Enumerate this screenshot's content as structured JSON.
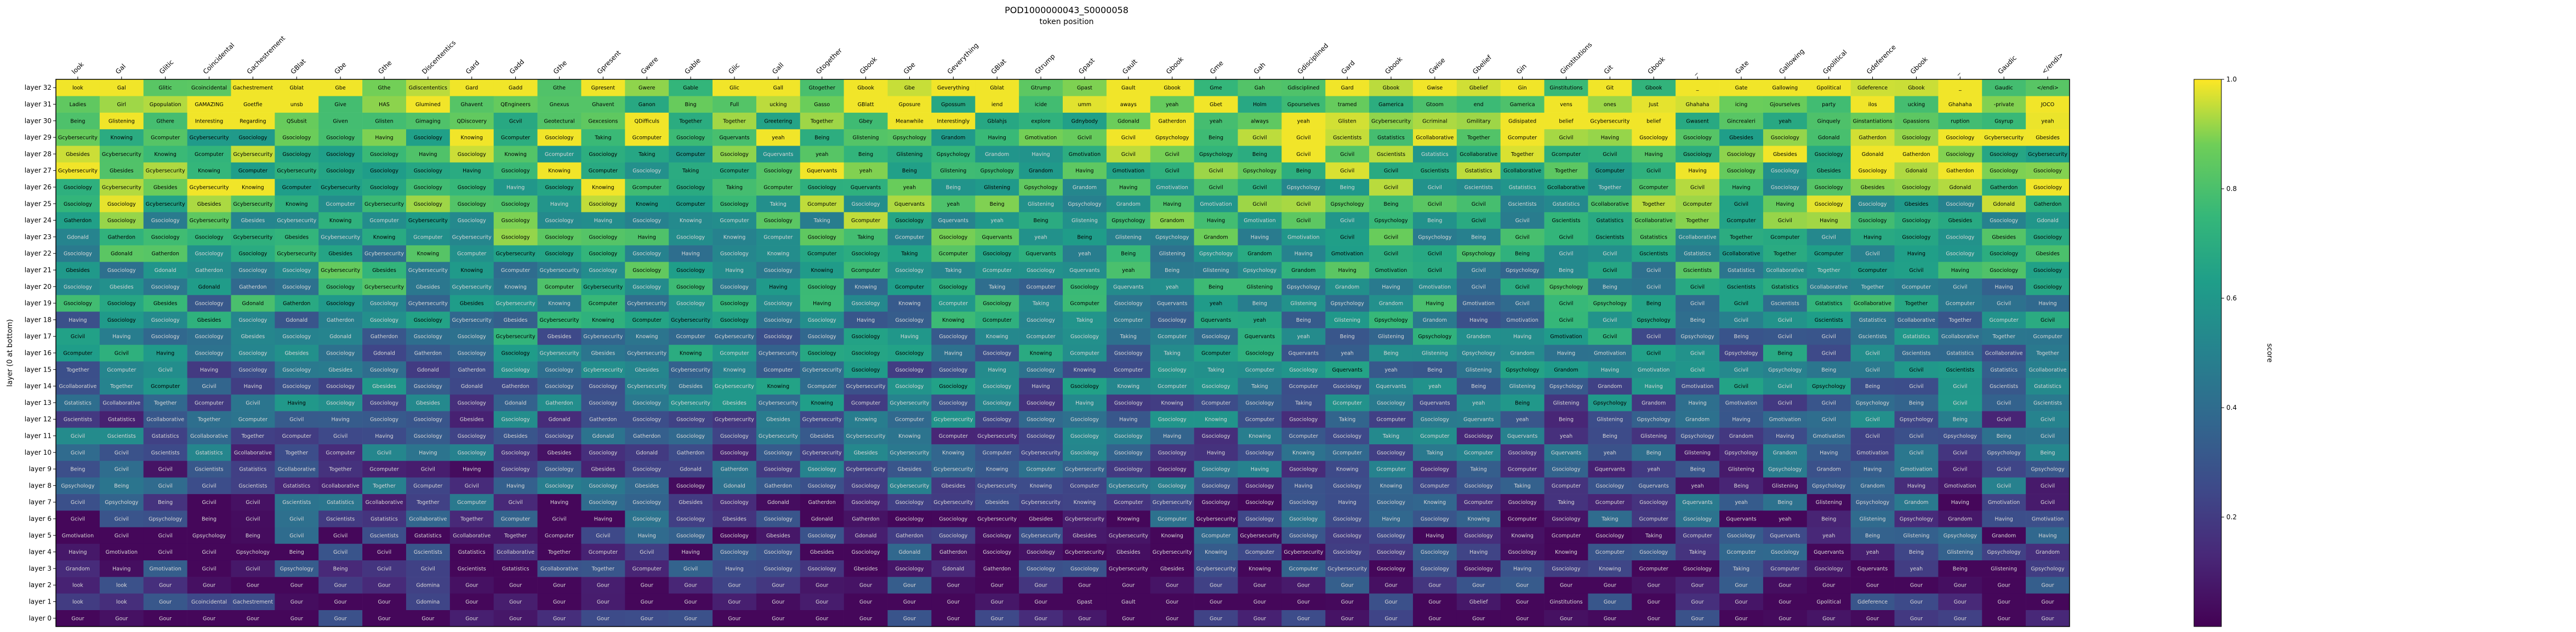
{
  "chart_data": {
    "type": "heatmap",
    "title": "POD1000000043_S0000058",
    "xlabel": "token position",
    "ylabel": "layer (0 at bottom)",
    "x_tokens": [
      "look",
      "Gal",
      "Glitic",
      "Coincidental",
      "Gachestrement",
      "GBlat",
      "Gbe",
      "Gthe",
      "Discententics",
      "Gard",
      "Gadd",
      "Gthe",
      "Gpresent",
      "Gwere",
      "Gable",
      "Glic",
      "Gall",
      "Gtogether",
      "Gbook",
      "Gbe",
      "Geverything",
      "GBlat",
      "Gtrump",
      "Gpast",
      "Gault",
      "Gbook",
      "Gme",
      "Gah",
      "Gdisciplined",
      "Gard",
      "Gbook",
      "Gwise",
      "Gbelief",
      "Gin",
      "Ginstitutions",
      "Git",
      "Gbook",
      "_",
      "Gate",
      "Gallowing",
      "Gpolitical",
      "Gdeference",
      "Gbook",
      "_",
      "Gaudic",
      "</endi>"
    ],
    "layers": [
      "layer 0",
      "layer 1",
      "layer 2",
      "layer 3",
      "layer 4",
      "layer 5",
      "layer 6",
      "layer 7",
      "layer 8",
      "layer 9",
      "layer 10",
      "layer 11",
      "layer 12",
      "layer 13",
      "layer 14",
      "layer 15",
      "layer 16",
      "layer 17",
      "layer 18",
      "layer 19",
      "layer 20",
      "layer 21",
      "layer 22",
      "layer 23",
      "layer 24",
      "layer 25",
      "layer 26",
      "layer 27",
      "layer 28",
      "layer 29",
      "layer 30",
      "layer 31",
      "layer 32"
    ],
    "predicted_tokens_top_layers": {
      "layer 32": [
        "look",
        "Gal",
        "Glitic",
        "Gcoincidental",
        "Gachestrement",
        "Gblat",
        "Gbe",
        "Gthe",
        "Gdiscententics",
        "Gard",
        "Gadd",
        "Gthe",
        "Gpresent",
        "Gwere",
        "Gable",
        "Glic",
        "Gall",
        "Gtogether",
        "Gbook",
        "Gbe",
        "Geverything",
        "Gblat",
        "Gtrump",
        "Gpast",
        "Gault",
        "Gbook",
        "Gme",
        "Gah",
        "Gdisciplined",
        "Gard",
        "Gbook",
        "Gwise",
        "Gbelief",
        "Gin",
        "Ginstitutions",
        "Git",
        "Gbook",
        "_",
        "Gate",
        "Gallowing",
        "Gpolitical",
        "Gdeference",
        "Gbook",
        "_",
        "Gaudic",
        "</endi>"
      ],
      "layer 31": [
        "Ladies",
        "Girl",
        "Gpopulation",
        "GAMAZING",
        "Goetfie",
        "unsb",
        "Give",
        "HAS",
        "Glumined",
        "Ghavent",
        "QEngineers",
        "Gnexus",
        "Ghavent",
        "Ganon",
        "Bing",
        "Full",
        "ucking",
        "Gasso",
        "GBlatt",
        "Gposure",
        "Gpossum",
        "iend",
        "icide",
        "umm",
        "aways",
        "yeah",
        "Gbet",
        "Holm",
        "Gpourselves",
        "tramed",
        "Gamerica",
        "Gtoom",
        "end",
        "Gamerica",
        "vens",
        "ones",
        "Just",
        "Ghahaha",
        "icing",
        "Gjourselves",
        "party",
        "ilos",
        "ucking",
        "Ghahaha",
        "-private",
        "JOCO"
      ],
      "layer 30": [
        "Being",
        "Glistening",
        "Gthere",
        "Interesting",
        "Regarding",
        "QSubsit",
        "Given",
        "Glisten",
        "Gimaging",
        "QDiscovery",
        "Gcvil",
        "Geotectural",
        "Gexcesions",
        "QDifficuls",
        "Together",
        "Together",
        "Greetering",
        "Together",
        "Gbey",
        "Meanwhile",
        "Interestingly",
        "Gblahjs",
        "explore",
        "Gdnybody",
        "Gdonald",
        "Gatherdon",
        "yeah",
        "always",
        "yeah",
        "Glisten",
        "Gcybersecurity",
        "Gcriminal",
        "Gmilitary",
        "Gdisipated",
        "belief",
        "Gcybersecurity",
        "belief",
        "Gwasent",
        "Gincrealeri",
        "yeah",
        "Ginquely",
        "Ginstantiations",
        "Gpassions",
        "ruption",
        "Gsyrup",
        "yeah"
      ]
    },
    "colorbar": {
      "label": "score",
      "ticks": [
        0.2,
        0.4,
        0.6,
        0.8,
        1.0
      ],
      "range": [
        0.0,
        1.0
      ],
      "colormap": "viridis"
    },
    "cell_labels_by_layer": [
      [
        "Gour",
        "Gour",
        "Gour",
        "Gour",
        "Gour",
        "Gour",
        "Gour",
        "Gour",
        "Gour",
        "Gour",
        "Gour",
        "Gour",
        "Gour",
        "Gour",
        "Gour",
        "Gour",
        "Gour",
        "Gour",
        "Gour",
        "Gour",
        "Gour",
        "Gour",
        "Gour",
        "Gour",
        "Gour",
        "Gour",
        "Gour",
        "Gour",
        "Gour",
        "Gour",
        "Gour",
        "Gour",
        "Gour",
        "Gour",
        "Gour",
        "Gour",
        "Gour",
        "Gour",
        "Gour",
        "Gour",
        "Gour",
        "Gour",
        "Gour",
        "Gour",
        "Gour",
        "Gour"
      ],
      [
        "look",
        "look",
        "Gour",
        "Gcoincidental",
        "Gachestrement",
        "Gour",
        "Gour",
        "Gour",
        "Gdomina",
        "Gour",
        "Gour",
        "Gour",
        "Gour",
        "Gour",
        "Gour",
        "Gour",
        "Gour",
        "Gour",
        "Gour",
        "Gour",
        "Gour",
        "Gour",
        "Gour",
        "Gpast",
        "Gault",
        "Gour",
        "Gour",
        "Gour",
        "Gour",
        "Gour",
        "Gour",
        "Gour",
        "Gbelief",
        "Gour",
        "Ginstitutions",
        "Gour",
        "Gour",
        "Gour",
        "Gour",
        "Gour",
        "Gpolitical",
        "Gdeference",
        "Gour",
        "Gour",
        "Gour",
        "Gour"
      ],
      [
        "look",
        "look",
        "Gour",
        "Gour",
        "Gour",
        "Gour",
        "Gour",
        "Gour",
        "Gdomina",
        "Gour",
        "Gour",
        "Gour",
        "Gour",
        "Gour",
        "Gour",
        "Gour",
        "Gour",
        "Gour",
        "Gour",
        "Gour",
        "Gour",
        "Gour",
        "Gour",
        "Gour",
        "Gour",
        "Gour",
        "Gour",
        "Gour",
        "Gour",
        "Gour",
        "Gour",
        "Gour",
        "Gour",
        "Gour",
        "Gour",
        "Gour",
        "Gour",
        "Gour",
        "Gour",
        "Gour",
        "Gour",
        "Gour",
        "Gour",
        "Gour",
        "Gour",
        "Gour"
      ]
    ]
  }
}
